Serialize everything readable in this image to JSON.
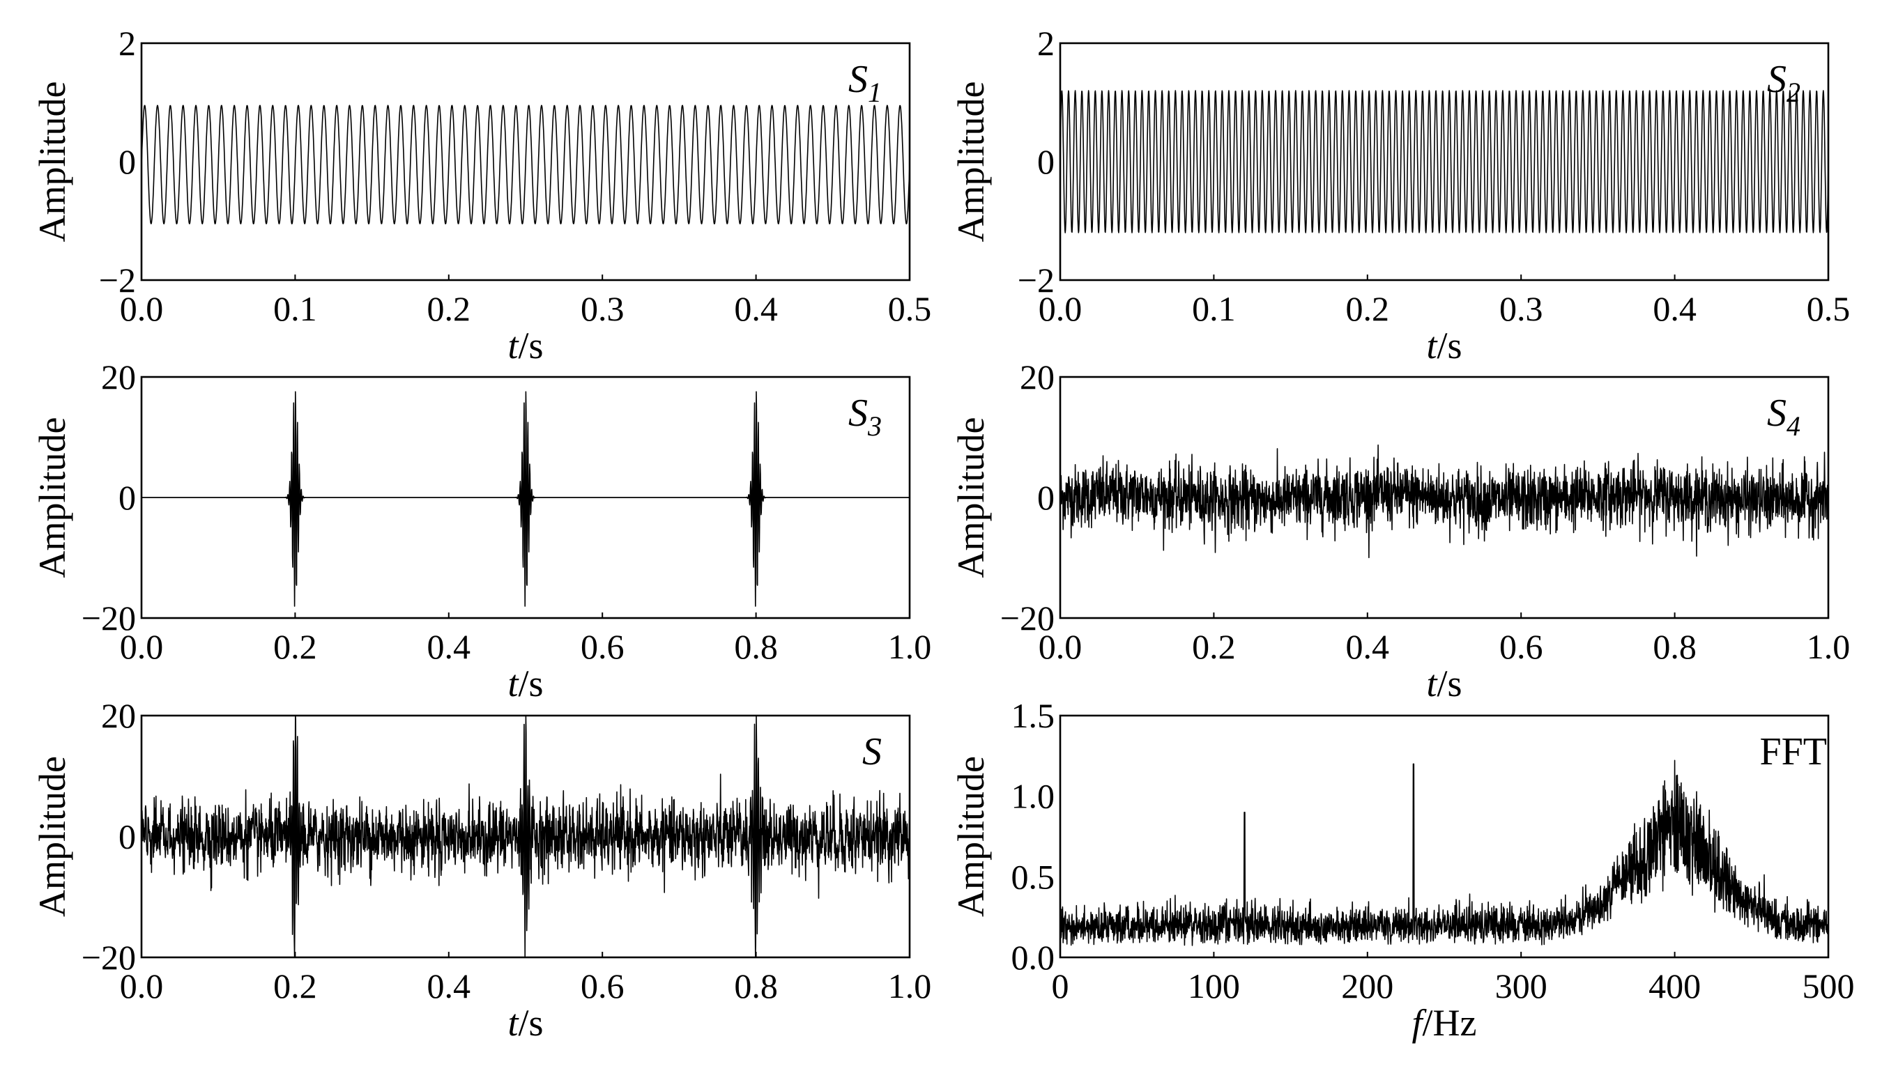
{
  "chart_data": [
    {
      "type": "line",
      "panel_label": "S",
      "panel_label_sub": "1",
      "ylabel": "Amplitude",
      "xlabel_italic": "t",
      "xlabel_unit": "/s",
      "xlim": [
        0,
        0.5
      ],
      "ylim": [
        -2,
        2
      ],
      "xticks": [
        "0.0",
        "0.1",
        "0.2",
        "0.3",
        "0.4",
        "0.5"
      ],
      "yticks": [
        "2",
        "0",
        "−2"
      ],
      "series": [
        {
          "kind": "sine",
          "amplitude": 1.0,
          "frequency_hz": 120,
          "offset": -0.05
        }
      ]
    },
    {
      "type": "line",
      "panel_label": "S",
      "panel_label_sub": "2",
      "ylabel": "Amplitude",
      "xlabel_italic": "t",
      "xlabel_unit": "/s",
      "xlim": [
        0,
        0.5
      ],
      "ylim": [
        -2,
        2
      ],
      "xticks": [
        "0.0",
        "0.1",
        "0.2",
        "0.3",
        "0.4",
        "0.5"
      ],
      "yticks": [
        "2",
        "0",
        "−2"
      ],
      "series": [
        {
          "kind": "sine",
          "amplitude": 1.2,
          "frequency_hz": 230,
          "offset": 0
        }
      ]
    },
    {
      "type": "line",
      "panel_label": "S",
      "panel_label_sub": "3",
      "ylabel": "Amplitude",
      "xlabel_italic": "t",
      "xlabel_unit": "/s",
      "xlim": [
        0,
        1.0
      ],
      "ylim": [
        -20,
        20
      ],
      "xticks": [
        "0.0",
        "0.2",
        "0.4",
        "0.6",
        "0.8",
        "1.0"
      ],
      "yticks": [
        "20",
        "0",
        "−20"
      ],
      "series": [
        {
          "kind": "impulses",
          "centers_s": [
            0.2,
            0.5,
            0.8
          ],
          "peak": 18.5,
          "carrier_hz": 400
        }
      ]
    },
    {
      "type": "line",
      "panel_label": "S",
      "panel_label_sub": "4",
      "ylabel": "Amplitude",
      "xlabel_italic": "t",
      "xlabel_unit": "/s",
      "xlim": [
        0,
        1.0
      ],
      "ylim": [
        -20,
        20
      ],
      "xticks": [
        "0.0",
        "0.2",
        "0.4",
        "0.6",
        "0.8",
        "1.0"
      ],
      "yticks": [
        "20",
        "0",
        "−20"
      ],
      "series": [
        {
          "kind": "noise",
          "std": 2.6,
          "peak_abs": 10
        }
      ]
    },
    {
      "type": "line",
      "panel_label": "S",
      "panel_label_sub": "",
      "ylabel": "Amplitude",
      "xlabel_italic": "t",
      "xlabel_unit": "/s",
      "xlim": [
        0,
        1.0
      ],
      "ylim": [
        -20,
        20
      ],
      "xticks": [
        "0.0",
        "0.2",
        "0.4",
        "0.6",
        "0.8",
        "1.0"
      ],
      "yticks": [
        "20",
        "0",
        "−20"
      ],
      "series": [
        {
          "kind": "sum",
          "components": [
            "S1",
            "S2",
            "S3",
            "S4"
          ],
          "centers_s": [
            0.2,
            0.5,
            0.8
          ],
          "peak": 20
        }
      ]
    },
    {
      "type": "line",
      "panel_label": "FFT",
      "panel_label_sub": "",
      "ylabel": "Amplitude",
      "xlabel_italic": "f",
      "xlabel_unit": "/Hz",
      "xlim": [
        0,
        500
      ],
      "ylim": [
        0,
        1.5
      ],
      "xticks": [
        "0",
        "100",
        "200",
        "300",
        "400",
        "500"
      ],
      "yticks": [
        "1.5",
        "1.0",
        "0.5",
        "0.0"
      ],
      "series": [
        {
          "kind": "spectrum",
          "peaks": [
            {
              "frequency_hz": 120,
              "amplitude": 0.9
            },
            {
              "frequency_hz": 230,
              "amplitude": 1.2
            }
          ],
          "band": {
            "center_hz": 400,
            "width_hz": 40,
            "amplitude": 0.9
          },
          "noise_floor": 0.15
        }
      ]
    }
  ]
}
